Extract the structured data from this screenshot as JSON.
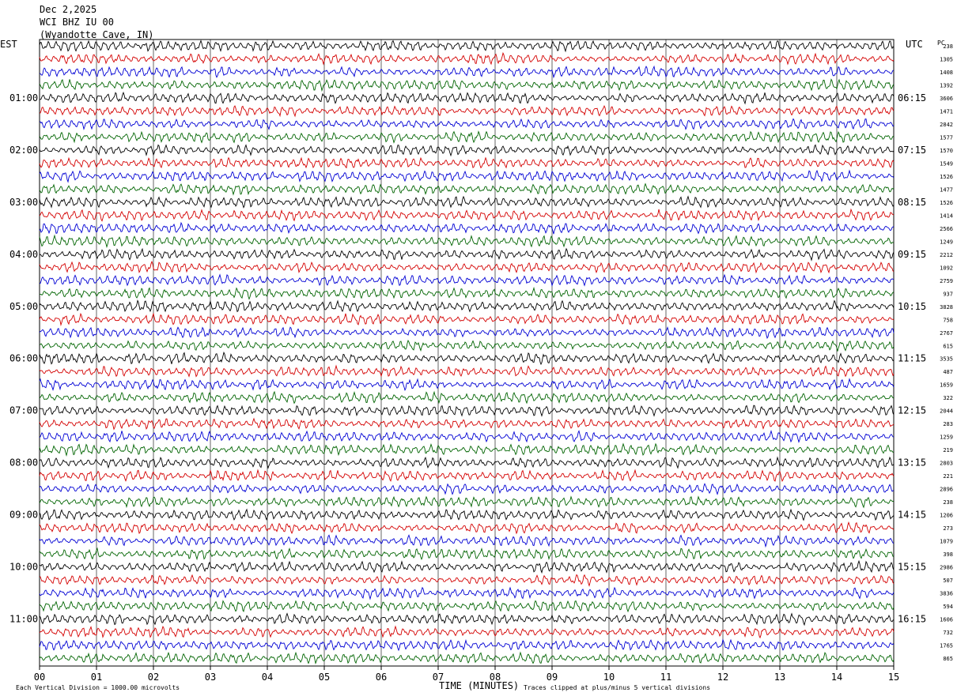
{
  "header": {
    "date": "Dec 2,2025",
    "station": "WCI BHZ IU 00",
    "location": "(Wyandotte Cave, IN)"
  },
  "left_tz": "EST",
  "right_tz": "UTC",
  "pc_label": "PC",
  "footer": {
    "scale_note": "Each Vertical Division = 1000.00 microvolts",
    "xlabel": "TIME (MINUTES)",
    "clip_note": "Traces clipped at plus/minus 5 vertical divisions"
  },
  "chart_data": {
    "type": "line",
    "title": "Dec 2,2025",
    "xlabel": "TIME (MINUTES)",
    "ylabel": "",
    "xlim": [
      0,
      15
    ],
    "x_ticks": [
      "00",
      "01",
      "02",
      "03",
      "04",
      "05",
      "06",
      "07",
      "08",
      "09",
      "10",
      "11",
      "12",
      "13",
      "14",
      "15"
    ],
    "left_hour_labels": [
      "01:00",
      "02:00",
      "03:00",
      "04:00",
      "05:00",
      "06:00",
      "07:00",
      "08:00",
      "09:00",
      "10:00",
      "11:00"
    ],
    "right_hour_labels": [
      "06:15",
      "07:15",
      "08:15",
      "09:15",
      "10:15",
      "11:15",
      "12:15",
      "13:15",
      "14:15",
      "15:15",
      "16:15"
    ],
    "trace_colors": [
      "#000000",
      "#d40000",
      "#0000d4",
      "#006400"
    ],
    "traces_per_hour": 4,
    "trace_count": 48,
    "trace_values": [
      "238",
      "1305",
      "1408",
      "1392",
      "3606",
      "1471",
      "2842",
      "1577",
      "1570",
      "1549",
      "1526",
      "1477",
      "1526",
      "1414",
      "2566",
      "1249",
      "2212",
      "1092",
      "2759",
      "937",
      "3828",
      "758",
      "2767",
      "615",
      "3535",
      "487",
      "1659",
      "322",
      "2044",
      "283",
      "1259",
      "219",
      "2803",
      "221",
      "2896",
      "238",
      "1206",
      "273",
      "1079",
      "398",
      "2986",
      "507",
      "3836",
      "594",
      "1606",
      "732",
      "1765",
      "865"
    ],
    "grid": true
  }
}
